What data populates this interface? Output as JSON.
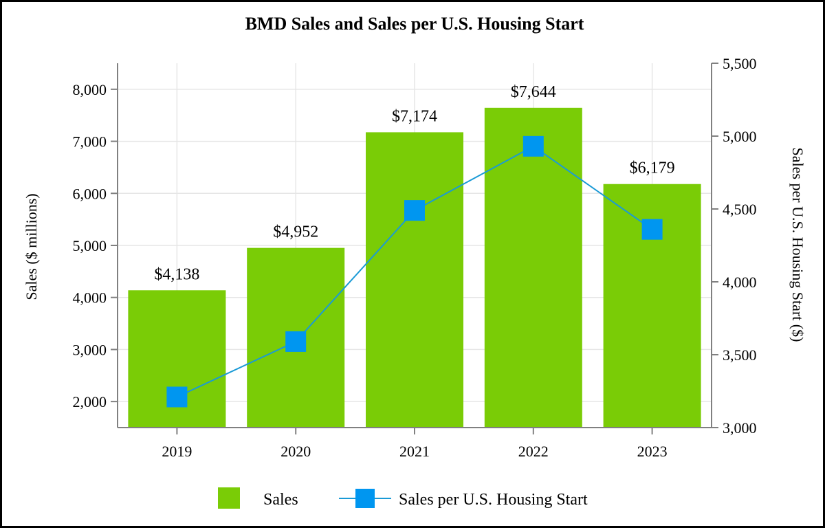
{
  "chart_data": {
    "type": "bar",
    "title": "BMD Sales and Sales per U.S. Housing Start",
    "categories": [
      "2019",
      "2020",
      "2021",
      "2022",
      "2023"
    ],
    "series": [
      {
        "name": "Sales",
        "kind": "bar",
        "axis": "left",
        "values": [
          4138,
          4952,
          7174,
          7644,
          6179
        ],
        "data_labels": [
          "$4,138",
          "$4,952",
          "$7,174",
          "$7,644",
          "$6,179"
        ],
        "color": "#7acc06"
      },
      {
        "name": "Sales per U.S. Housing Start",
        "kind": "line",
        "axis": "right",
        "marker": "square",
        "values": [
          3210,
          3590,
          4490,
          4930,
          4360
        ],
        "color": "#0096f0",
        "line_color": "#1a9ad6"
      }
    ],
    "ylabel": "Sales ($ millions)",
    "ylim": [
      1500,
      8500
    ],
    "yticks": [
      2000,
      3000,
      4000,
      5000,
      6000,
      7000,
      8000
    ],
    "ytick_labels": [
      "2,000",
      "3,000",
      "4,000",
      "5,000",
      "6,000",
      "7,000",
      "8,000"
    ],
    "y2label": "Sales per U.S. Housing Start ($)",
    "y2lim": [
      3000,
      5500
    ],
    "y2ticks": [
      3000,
      3500,
      4000,
      4500,
      5000,
      5500
    ],
    "y2tick_labels": [
      "3,000",
      "3,500",
      "4,000",
      "4,500",
      "5,000",
      "5,500"
    ],
    "grid": true,
    "legend_position": "bottom",
    "axis_color": "#808080",
    "grid_color": "#e6e6e6"
  }
}
